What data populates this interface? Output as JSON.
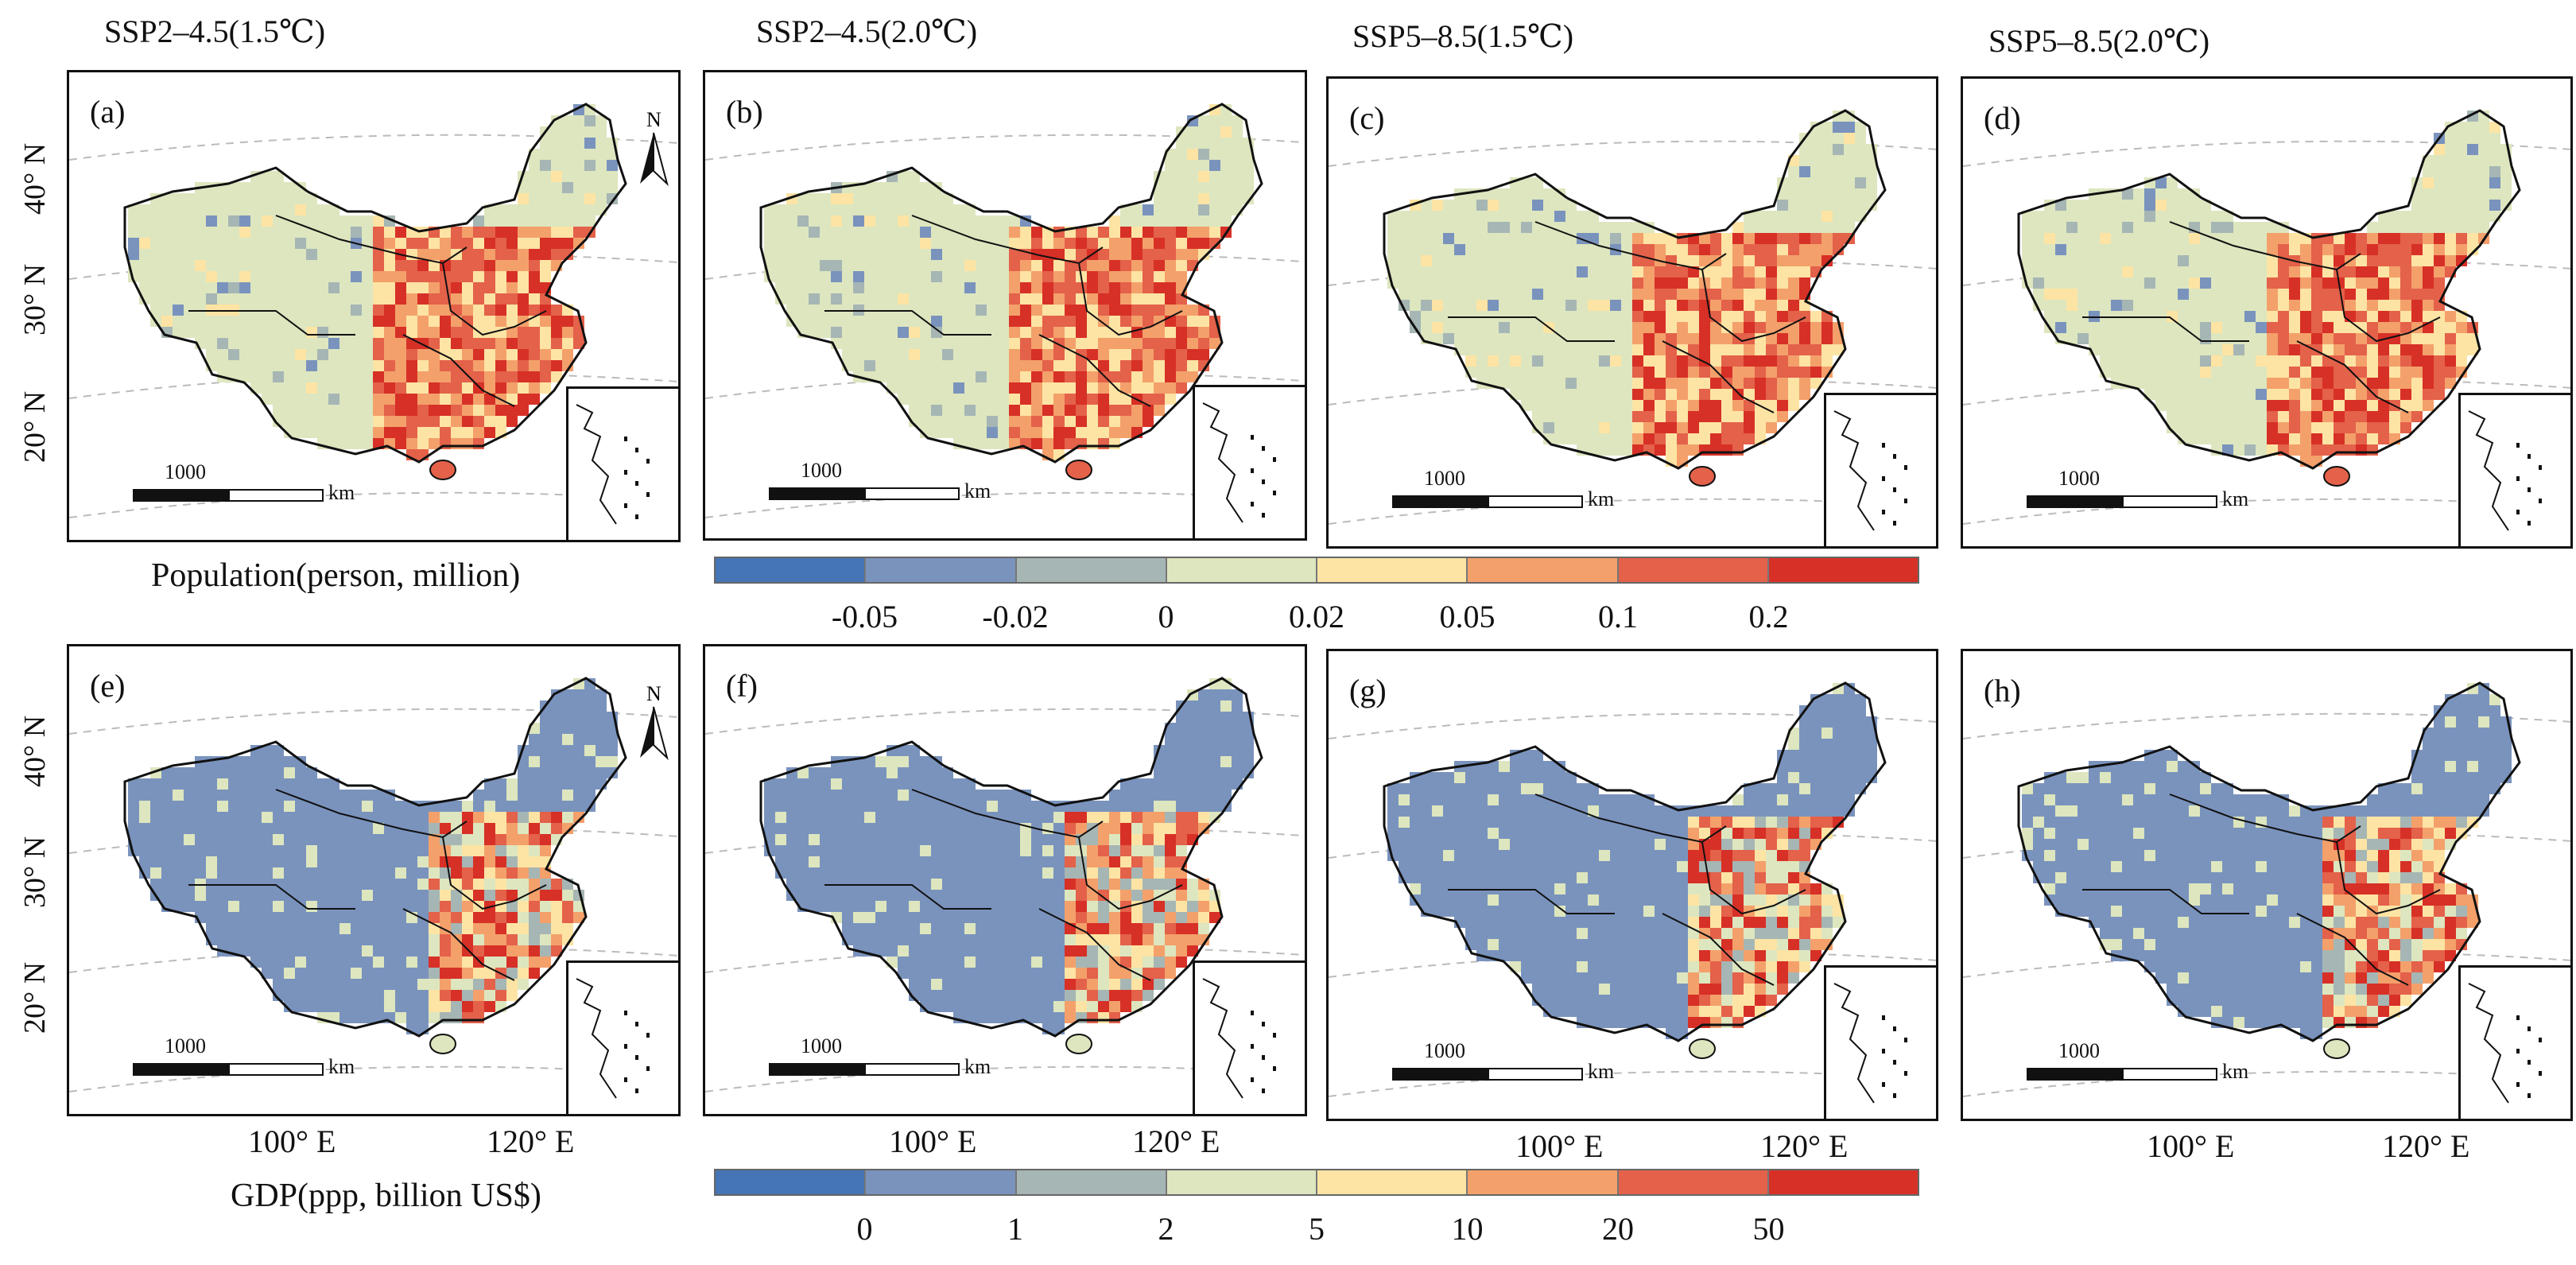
{
  "columns": [
    "SSP2–4.5(1.5℃)",
    "SSP2–4.5(2.0℃)",
    "SSP5–8.5(1.5℃)",
    "SSP5–8.5(2.0℃)"
  ],
  "panels": [
    {
      "label": "(a)",
      "variable": "population",
      "scenario": "SSP2–4.5(1.5℃)"
    },
    {
      "label": "(b)",
      "variable": "population",
      "scenario": "SSP2–4.5(2.0℃)"
    },
    {
      "label": "(c)",
      "variable": "population",
      "scenario": "SSP5–8.5(1.5℃)"
    },
    {
      "label": "(d)",
      "variable": "population",
      "scenario": "SSP5–8.5(2.0℃)"
    },
    {
      "label": "(e)",
      "variable": "gdp",
      "scenario": "SSP2–4.5(1.5℃)"
    },
    {
      "label": "(f)",
      "variable": "gdp",
      "scenario": "SSP2–4.5(2.0℃)"
    },
    {
      "label": "(g)",
      "variable": "gdp",
      "scenario": "SSP5–8.5(1.5℃)"
    },
    {
      "label": "(h)",
      "variable": "gdp",
      "scenario": "SSP5–8.5(2.0℃)"
    }
  ],
  "scale_bar": {
    "value": "1000",
    "unit": "km"
  },
  "north_arrow": "N",
  "latitude_labels": [
    "40° N",
    "30° N",
    "20° N"
  ],
  "longitude_labels": [
    "100° E",
    "120° E"
  ],
  "legend_population": {
    "title": "Population(person, million)",
    "colors": [
      "#4575b4",
      "#7a93bd",
      "#a6b6b4",
      "#dde6bf",
      "#fde4a4",
      "#f4a06b",
      "#e4614a",
      "#d73027"
    ],
    "ticks": [
      "-0.05",
      "-0.02",
      "0",
      "0.02",
      "0.05",
      "0.1",
      "0.2"
    ]
  },
  "legend_gdp": {
    "title": "GDP(ppp, billion US$)",
    "colors": [
      "#4575b4",
      "#7a93bd",
      "#a6b6b4",
      "#dde6bf",
      "#fde4a4",
      "#f4a06b",
      "#e4614a",
      "#d73027"
    ],
    "ticks": [
      "0",
      "1",
      "2",
      "5",
      "10",
      "20",
      "50"
    ]
  }
}
